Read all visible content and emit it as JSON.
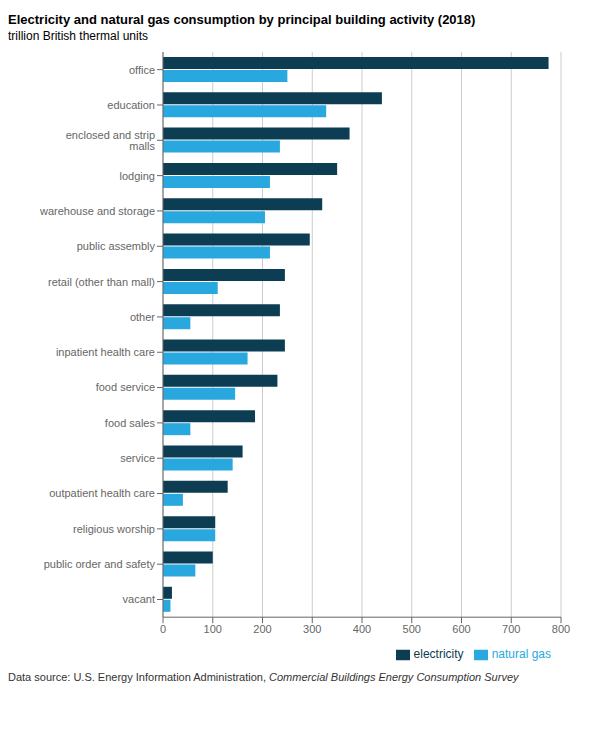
{
  "chart_data": {
    "type": "bar",
    "orientation": "horizontal",
    "title": "Electricity and natural gas consumption by principal building activity (2018)",
    "subtitle": "trillion British thermal units",
    "categories": [
      "office",
      "education",
      "enclosed and strip malls",
      "lodging",
      "warehouse and storage",
      "public assembly",
      "retail (other than mall)",
      "other",
      "inpatient health care",
      "food service",
      "food sales",
      "service",
      "outpatient health care",
      "religious worship",
      "public order and safety",
      "vacant"
    ],
    "series": [
      {
        "name": "electricity",
        "color": "#0d3d52",
        "values": [
          775,
          440,
          375,
          350,
          320,
          295,
          245,
          235,
          245,
          230,
          185,
          160,
          130,
          105,
          100,
          18
        ]
      },
      {
        "name": "natural gas",
        "color": "#29a8e0",
        "values": [
          250,
          328,
          235,
          215,
          205,
          215,
          110,
          55,
          170,
          145,
          55,
          140,
          40,
          105,
          65,
          15
        ]
      }
    ],
    "xlim": [
      0,
      800
    ],
    "xticks": [
      0,
      100,
      200,
      300,
      400,
      500,
      600,
      700,
      800
    ],
    "grid": true,
    "legend": "lower right",
    "annotations": [
      "Data source: U.S. Energy Information Administration, ",
      "Commercial Buildings Energy Consumption Survey"
    ]
  }
}
